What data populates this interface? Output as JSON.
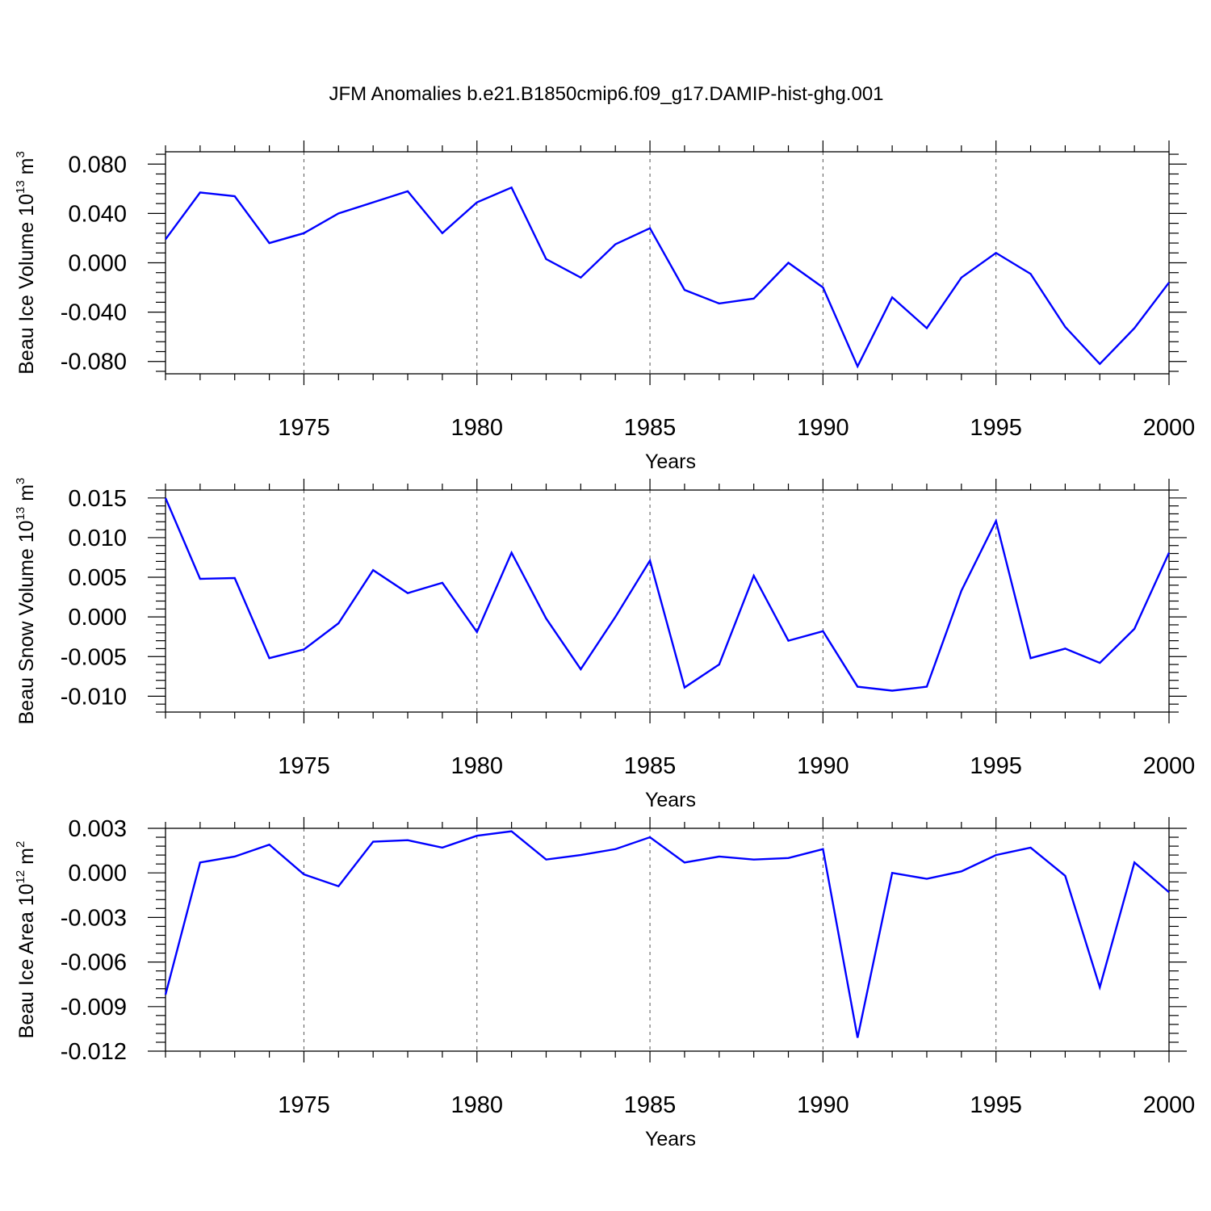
{
  "figure": {
    "title": "JFM Anomalies b.e21.B1850cmip6.f09_g17.DAMIP-hist-ghg.001"
  },
  "colors": {
    "series": "#0000ff",
    "axes": "#000000",
    "grid": "#555555"
  },
  "chart_data": [
    {
      "type": "line",
      "title": "JFM Anomalies b.e21.B1850cmip6.f09_g17.DAMIP-hist-ghg.001",
      "ylabel": "Beau Ice Volume",
      "ylabel_unit": {
        "base": "10",
        "exp": "13",
        "unit": "m",
        "unit_exp": "3"
      },
      "xlabel": "Years",
      "xlim": [
        1971,
        2000
      ],
      "ylim": [
        -0.09,
        0.09
      ],
      "xticks": [
        1975,
        1980,
        1985,
        1990,
        1995,
        2000
      ],
      "yticks": [
        0.08,
        0.04,
        0.0,
        -0.04,
        -0.08
      ],
      "ytick_labels": [
        "0.080",
        "0.040",
        "0.000",
        "-0.040",
        "-0.080"
      ],
      "x": [
        1971,
        1972,
        1973,
        1974,
        1975,
        1976,
        1977,
        1978,
        1979,
        1980,
        1981,
        1982,
        1983,
        1984,
        1985,
        1986,
        1987,
        1988,
        1989,
        1990,
        1991,
        1992,
        1993,
        1994,
        1995,
        1996,
        1997,
        1998,
        1999,
        2000
      ],
      "y": [
        0.019,
        0.057,
        0.054,
        0.016,
        0.024,
        0.04,
        0.049,
        0.058,
        0.024,
        0.049,
        0.061,
        0.003,
        -0.012,
        0.015,
        0.028,
        -0.022,
        -0.033,
        -0.029,
        0.0,
        -0.02,
        -0.084,
        -0.028,
        -0.053,
        -0.012,
        0.008,
        -0.009,
        -0.052,
        -0.082,
        -0.053,
        -0.016
      ]
    },
    {
      "type": "line",
      "ylabel": "Beau Snow Volume",
      "ylabel_unit": {
        "base": "10",
        "exp": "13",
        "unit": "m",
        "unit_exp": "3"
      },
      "xlabel": "Years",
      "xlim": [
        1971,
        2000
      ],
      "ylim": [
        -0.012,
        0.016
      ],
      "xticks": [
        1975,
        1980,
        1985,
        1990,
        1995,
        2000
      ],
      "yticks": [
        0.015,
        0.01,
        0.005,
        0.0,
        -0.005,
        -0.01
      ],
      "ytick_labels": [
        "0.015",
        "0.010",
        "0.005",
        "0.000",
        "-0.005",
        "-0.010"
      ],
      "x": [
        1971,
        1972,
        1973,
        1974,
        1975,
        1976,
        1977,
        1978,
        1979,
        1980,
        1981,
        1982,
        1983,
        1984,
        1985,
        1986,
        1987,
        1988,
        1989,
        1990,
        1991,
        1992,
        1993,
        1994,
        1995,
        1996,
        1997,
        1998,
        1999,
        2000
      ],
      "y": [
        0.015,
        0.0048,
        0.0049,
        -0.0052,
        -0.0041,
        -0.0008,
        0.0059,
        0.003,
        0.0043,
        -0.0019,
        0.0081,
        -0.0002,
        -0.0066,
        0.0,
        0.0071,
        -0.0089,
        -0.006,
        0.0052,
        -0.003,
        -0.0018,
        -0.0088,
        -0.0093,
        -0.0088,
        0.0033,
        0.0121,
        -0.0052,
        -0.004,
        -0.0058,
        -0.0015,
        0.0081
      ]
    },
    {
      "type": "line",
      "ylabel": "Beau Ice Area",
      "ylabel_unit": {
        "base": "10",
        "exp": "12",
        "unit": "m",
        "unit_exp": "2"
      },
      "xlabel": "Years",
      "xlim": [
        1971,
        2000
      ],
      "ylim": [
        -0.012,
        0.003
      ],
      "xticks": [
        1975,
        1980,
        1985,
        1990,
        1995,
        2000
      ],
      "yticks": [
        0.003,
        0.0,
        -0.003,
        -0.006,
        -0.009,
        -0.012
      ],
      "ytick_labels": [
        "0.003",
        "0.000",
        "-0.003",
        "-0.006",
        "-0.009",
        "-0.012"
      ],
      "x": [
        1971,
        1972,
        1973,
        1974,
        1975,
        1976,
        1977,
        1978,
        1979,
        1980,
        1981,
        1982,
        1983,
        1984,
        1985,
        1986,
        1987,
        1988,
        1989,
        1990,
        1991,
        1992,
        1993,
        1994,
        1995,
        1996,
        1997,
        1998,
        1999,
        2000
      ],
      "y": [
        -0.0082,
        0.0007,
        0.0011,
        0.0019,
        -0.0001,
        -0.0009,
        0.0021,
        0.0022,
        0.0017,
        0.0025,
        0.0028,
        0.0009,
        0.0012,
        0.0016,
        0.0024,
        0.0007,
        0.0011,
        0.0009,
        0.001,
        0.0016,
        -0.0111,
        0.0,
        -0.0004,
        0.0001,
        0.0012,
        0.0017,
        -0.0002,
        -0.0077,
        0.0007,
        -0.0013
      ]
    }
  ]
}
